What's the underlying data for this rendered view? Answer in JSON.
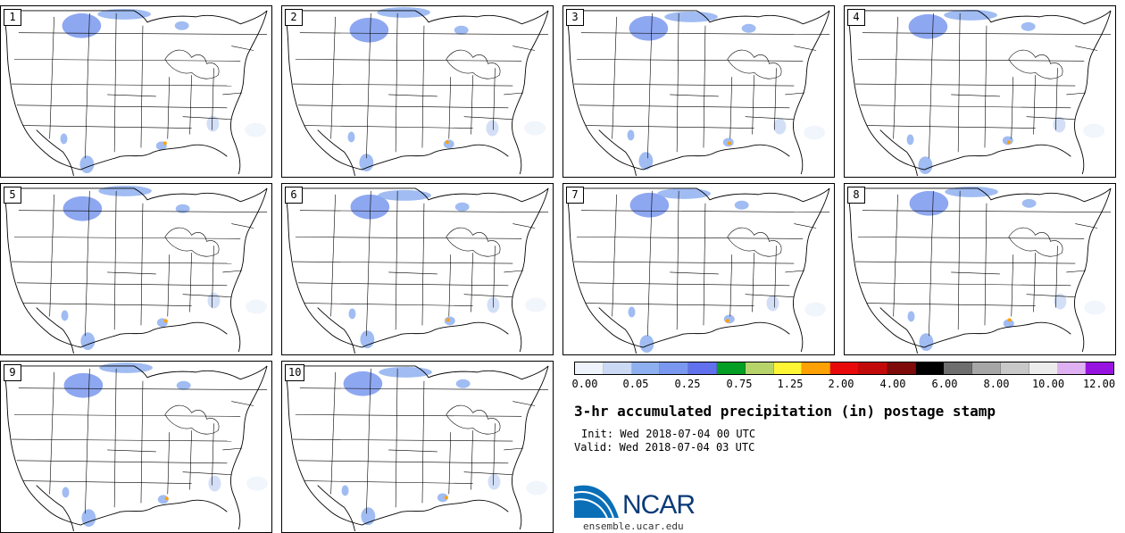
{
  "panels": [
    {
      "label": "1"
    },
    {
      "label": "2"
    },
    {
      "label": "3"
    },
    {
      "label": "4"
    },
    {
      "label": "5"
    },
    {
      "label": "6"
    },
    {
      "label": "7"
    },
    {
      "label": "8"
    },
    {
      "label": "9"
    },
    {
      "label": "10"
    }
  ],
  "colorbar": {
    "colors": [
      "#eef3fc",
      "#cbd9f5",
      "#8fb0f0",
      "#7a98ef",
      "#6171ee",
      "#049e24",
      "#b7d46a",
      "#fef534",
      "#fea104",
      "#e80a0a",
      "#c30a0a",
      "#7f0a0a",
      "#000000",
      "#6e6e6e",
      "#a6a6a6",
      "#c8c8c8",
      "#ececec",
      "#dfb1f2",
      "#9713e0"
    ],
    "tick_labels": [
      "0.00",
      "0.05",
      "0.25",
      "0.75",
      "1.25",
      "2.00",
      "4.00",
      "6.00",
      "8.00",
      "10.00",
      "12.00"
    ]
  },
  "title": "3-hr accumulated precipitation (in) postage stamp",
  "init": "Init: Wed 2018-07-04 00 UTC",
  "valid": "Valid: Wed 2018-07-04 03 UTC",
  "logo": {
    "text": "NCAR",
    "url_text": "ensemble.ucar.edu",
    "color": "#0a6fb7"
  }
}
